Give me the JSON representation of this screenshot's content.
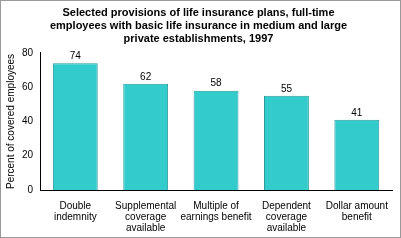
{
  "chart_data": {
    "type": "bar",
    "title": "Selected provisions of life insurance plans,  full-time employees with basic life insurance in medium and large private establishments, 1997",
    "y_label": "Percent of covered employees",
    "categories": [
      "Double indemnity",
      "Supplemental coverage available",
      "Multiple of earnings benefit",
      "Dependent coverage available",
      "Dollar amount benefit"
    ],
    "values": [
      74,
      62,
      58,
      55,
      41
    ],
    "color": "#33cccc",
    "ylim": [
      0,
      80
    ],
    "yticks": [
      0,
      20,
      40,
      60,
      80
    ],
    "grid": false,
    "data_labels": true
  }
}
